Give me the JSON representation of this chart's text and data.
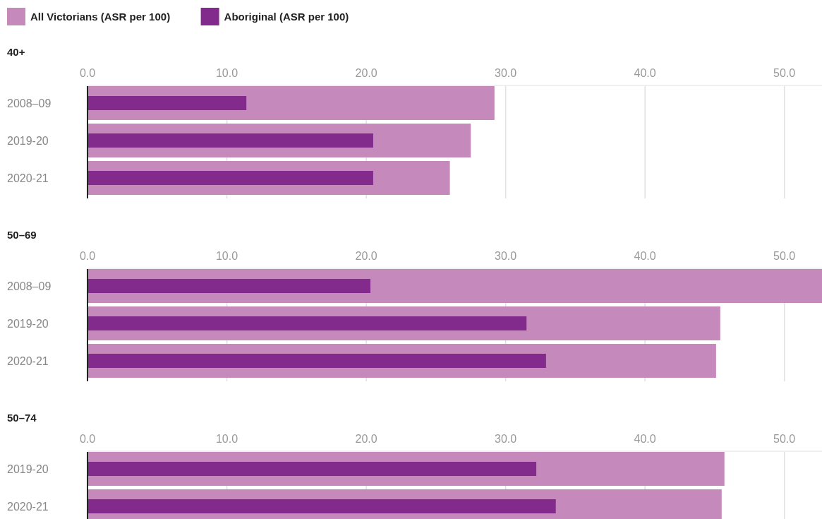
{
  "chart_data": [
    {
      "type": "bar",
      "orientation": "horizontal",
      "title": "40+",
      "categories": [
        "2008–09",
        "2019-20",
        "2020-21"
      ],
      "series": [
        {
          "name": "All Victorians (ASR per 100)",
          "color": "#c589bc",
          "values": [
            29.2,
            27.5,
            26.0
          ]
        },
        {
          "name": "Aboriginal (ASR per 100)",
          "color": "#832b8d",
          "values": [
            11.4,
            20.5,
            20.5
          ]
        }
      ],
      "xlim": [
        0,
        52.7
      ],
      "xticks": [
        {
          "value": 0,
          "label": "0.0"
        },
        {
          "value": 10,
          "label": "10.0"
        },
        {
          "value": 20,
          "label": "20.0"
        },
        {
          "value": 30,
          "label": "30.0"
        },
        {
          "value": 40,
          "label": "40.0"
        },
        {
          "value": 50,
          "label": "50.0"
        }
      ],
      "grid": "x",
      "legend": "top left"
    },
    {
      "type": "bar",
      "orientation": "horizontal",
      "title": "50–69",
      "categories": [
        "2008–09",
        "2019-20",
        "2020-21"
      ],
      "series": [
        {
          "color": "#c589bc",
          "values": [
            52.7,
            45.4,
            45.1
          ]
        },
        {
          "color": "#832b8d",
          "values": [
            20.3,
            31.5,
            32.9
          ]
        }
      ],
      "xlim": [
        0,
        52.7
      ],
      "xticks": [
        {
          "value": 0,
          "label": "0.0"
        },
        {
          "value": 10,
          "label": "10.0"
        },
        {
          "value": 20,
          "label": "20.0"
        },
        {
          "value": 30,
          "label": "30.0"
        },
        {
          "value": 40,
          "label": "40.0"
        },
        {
          "value": 50,
          "label": "50.0"
        }
      ],
      "grid": "x",
      "legend": false
    },
    {
      "type": "bar",
      "orientation": "horizontal",
      "title": "50–74",
      "categories": [
        "2019-20",
        "2020-21"
      ],
      "series": [
        {
          "color": "#c589bc",
          "values": [
            45.7,
            45.5
          ]
        },
        {
          "color": "#832b8d",
          "values": [
            32.2,
            33.6
          ]
        }
      ],
      "xlim": [
        0,
        52.7
      ],
      "xticks": [
        {
          "value": 0,
          "label": "0.0"
        },
        {
          "value": 10,
          "label": "10.0"
        },
        {
          "value": 20,
          "label": "20.0"
        },
        {
          "value": 30,
          "label": "30.0"
        },
        {
          "value": 40,
          "label": "40.0"
        },
        {
          "value": 50,
          "label": "50.0"
        }
      ],
      "grid": "x",
      "legend": false
    }
  ]
}
